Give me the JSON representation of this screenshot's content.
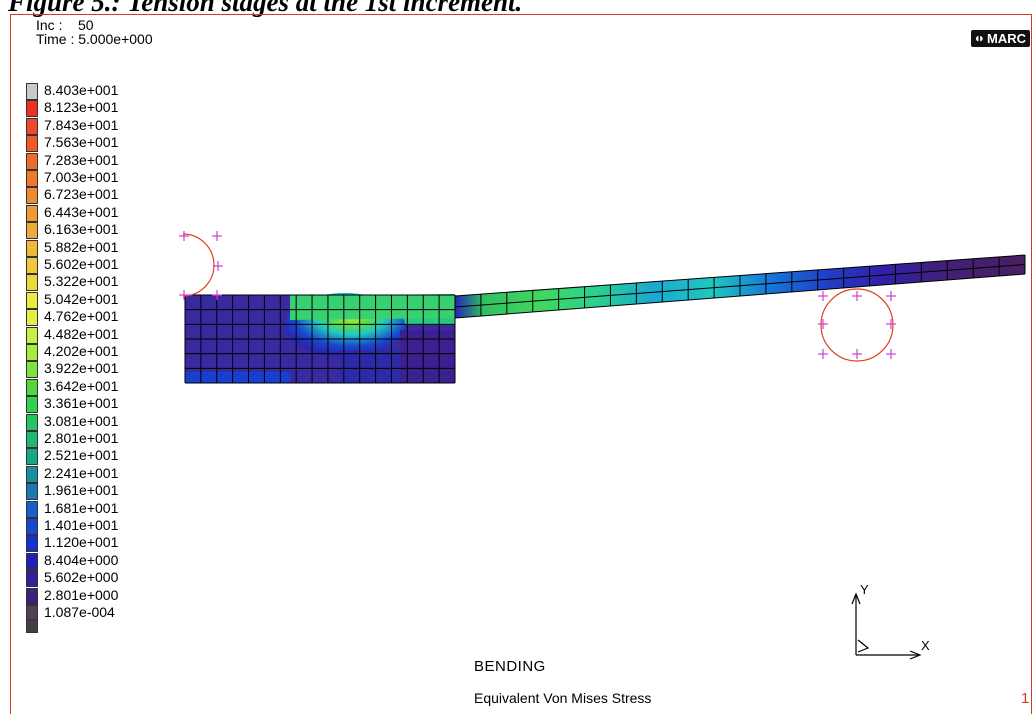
{
  "caption": "Figure 5.: Tension stages at the 1st increment.",
  "header": {
    "inc": "Inc :    50",
    "time": "Time : 5.000e+000"
  },
  "logo": {
    "text": "MARC",
    "icon": "marc-logo-icon"
  },
  "legend": {
    "labels": [
      "8.403e+001",
      "8.123e+001",
      "7.843e+001",
      "7.563e+001",
      "7.283e+001",
      "7.003e+001",
      "6.723e+001",
      "6.443e+001",
      "6.163e+001",
      "5.882e+001",
      "5.602e+001",
      "5.322e+001",
      "5.042e+001",
      "4.762e+001",
      "4.482e+001",
      "4.202e+001",
      "3.922e+001",
      "3.642e+001",
      "3.361e+001",
      "3.081e+001",
      "2.801e+001",
      "2.521e+001",
      "2.241e+001",
      "1.961e+001",
      "1.681e+001",
      "1.401e+001",
      "1.120e+001",
      "8.404e+000",
      "5.602e+000",
      "2.801e+000",
      "1.087e-004"
    ],
    "colors": [
      "#c8c8c8",
      "#f03020",
      "#f04828",
      "#f05a28",
      "#f06a2a",
      "#f07a2c",
      "#f08a30",
      "#f09a34",
      "#f0aa38",
      "#f0b838",
      "#f0c83a",
      "#f0d83c",
      "#f0e840",
      "#e0f040",
      "#c8f040",
      "#a8ec40",
      "#80e040",
      "#50d840",
      "#30d050",
      "#20c860",
      "#20b870",
      "#18a880",
      "#1890a0",
      "#1878b8",
      "#1860c8",
      "#1848d0",
      "#1830d0",
      "#2020b8",
      "#30209a",
      "#40207a",
      "#504058"
    ],
    "bottom_swatch": "#404040"
  },
  "axis": {
    "x": "X",
    "y": "Y"
  },
  "footer": {
    "title": "BENDING",
    "subtitle": "Equivalent Von Mises Stress",
    "page": "1"
  }
}
